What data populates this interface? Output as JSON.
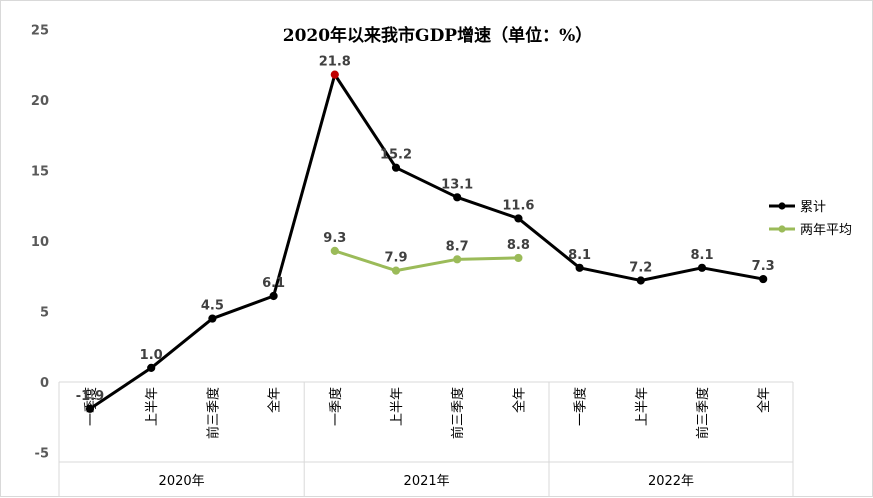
{
  "chart_data": {
    "type": "line",
    "title": "2020年以来我市GDP增速（单位：%）",
    "ylim": [
      -5,
      25
    ],
    "yticks": [
      -5,
      0,
      5,
      10,
      15,
      20,
      25
    ],
    "categories": [
      "一季度",
      "上半年",
      "前三季度",
      "全年",
      "一季度",
      "上半年",
      "前三季度",
      "全年",
      "一季度",
      "上半年",
      "前三季度",
      "全年"
    ],
    "groups": [
      {
        "label": "2020年",
        "span": [
          0,
          3
        ]
      },
      {
        "label": "2021年",
        "span": [
          4,
          7
        ]
      },
      {
        "label": "2022年",
        "span": [
          8,
          11
        ]
      }
    ],
    "series": [
      {
        "name": "累计",
        "color": "#000000",
        "values": [
          -1.9,
          1.0,
          4.5,
          6.1,
          21.8,
          15.2,
          13.1,
          11.6,
          8.1,
          7.2,
          8.1,
          7.3
        ],
        "highlight_index": 4,
        "highlight_color": "#c00000"
      },
      {
        "name": "两年平均",
        "color": "#9bbb59",
        "values": [
          null,
          null,
          null,
          null,
          9.3,
          7.9,
          8.7,
          8.8,
          null,
          null,
          null,
          null
        ]
      }
    ],
    "legend": "right",
    "grid": false
  }
}
